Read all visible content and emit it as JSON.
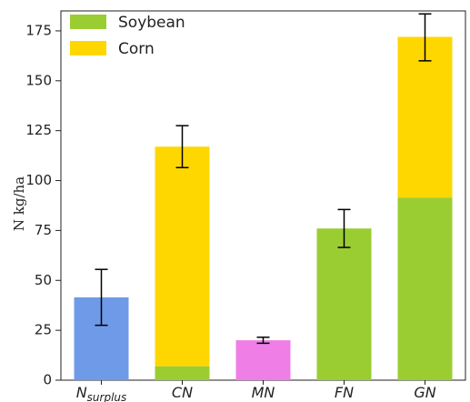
{
  "chart_data": {
    "type": "bar",
    "stacked": true,
    "ylabel": "N kg/ha",
    "xlabel": "",
    "ylim": [
      0,
      185
    ],
    "yticks": [
      0,
      25,
      50,
      75,
      100,
      125,
      150,
      175
    ],
    "grid": false,
    "legend_placement": "top-left",
    "categories": [
      {
        "id": "nsurplus",
        "main": "N",
        "sub": "surplus"
      },
      {
        "id": "cn",
        "main": "CN",
        "sub": ""
      },
      {
        "id": "mn",
        "main": "MN",
        "sub": ""
      },
      {
        "id": "fn",
        "main": "FN",
        "sub": ""
      },
      {
        "id": "gn",
        "main": "GN",
        "sub": ""
      }
    ],
    "bars": [
      {
        "category": "nsurplus",
        "segments": [
          {
            "value": 41.5,
            "color": "#6f9ae8"
          }
        ],
        "error": [
          27.5,
          55.5
        ]
      },
      {
        "category": "cn",
        "segments": [
          {
            "series": "Soybean",
            "value": 7
          },
          {
            "series": "Corn",
            "value": 110
          }
        ],
        "error": [
          106.5,
          127.5
        ]
      },
      {
        "category": "mn",
        "segments": [
          {
            "value": 20,
            "color": "#ef7fe6"
          }
        ],
        "error": [
          18.5,
          21.5
        ]
      },
      {
        "category": "fn",
        "segments": [
          {
            "series": "Soybean",
            "value": 76
          }
        ],
        "error": [
          66.5,
          85.5
        ]
      },
      {
        "category": "gn",
        "segments": [
          {
            "series": "Soybean",
            "value": 91.5
          },
          {
            "series": "Corn",
            "value": 80.5
          }
        ],
        "error": [
          160,
          183.5
        ]
      }
    ],
    "series": [
      {
        "name": "Soybean",
        "color": "#9acd32"
      },
      {
        "name": "Corn",
        "color": "#ffd700"
      }
    ]
  }
}
